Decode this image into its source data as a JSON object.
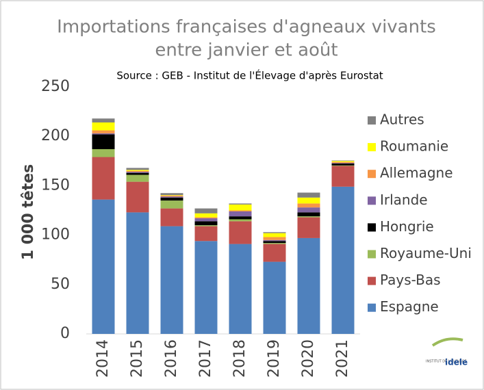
{
  "chart_data": {
    "type": "stacked_bar",
    "title": [
      "Importations françaises d'agneaux vivants",
      "entre janvier et août"
    ],
    "subtitle": "Source : GEB - Institut de l'Élevage d'après Eurostat",
    "y_label": "1 000 têtes",
    "categories": [
      "2014",
      "2015",
      "2016",
      "2017",
      "2018",
      "2019",
      "2020",
      "2021"
    ],
    "series": [
      {
        "name": "Espagne",
        "color": "#4f81bd",
        "values": [
          136,
          123,
          109,
          94,
          91,
          73,
          97,
          149
        ]
      },
      {
        "name": "Pays-Bas",
        "color": "#c0504d",
        "values": [
          43,
          31,
          18,
          15,
          23,
          18,
          21,
          21
        ]
      },
      {
        "name": "Royaume-Uni",
        "color": "#9bbb59",
        "values": [
          8,
          7,
          8,
          1,
          2,
          1,
          1,
          0.5
        ]
      },
      {
        "name": "Hongrie",
        "color": "#000000",
        "values": [
          15,
          2,
          3,
          4,
          3,
          2,
          4,
          2
        ]
      },
      {
        "name": "Irlande",
        "color": "#8064a2",
        "values": [
          1,
          1,
          1,
          3,
          5,
          1,
          5,
          0.5
        ]
      },
      {
        "name": "Allemagne",
        "color": "#f79646",
        "values": [
          3,
          1,
          1,
          1,
          1,
          3,
          4,
          1
        ]
      },
      {
        "name": "Roumanie",
        "color": "#ffff00",
        "values": [
          8,
          1,
          0.5,
          4,
          6,
          4,
          6,
          1
        ]
      },
      {
        "name": "Autres",
        "color": "#808080",
        "values": [
          4,
          2,
          2,
          5,
          1,
          1,
          5,
          0.5
        ]
      }
    ],
    "ylim": [
      0,
      250
    ],
    "yticks": [
      0,
      50,
      100,
      150,
      200,
      250
    ],
    "grid": false,
    "legend": "right",
    "logo": [
      "INSTITUT DE L'ÉLEVAGE",
      "idele"
    ]
  }
}
